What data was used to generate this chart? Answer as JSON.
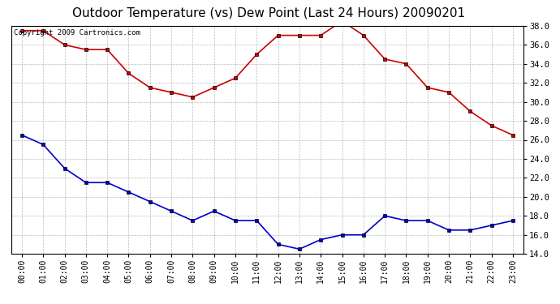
{
  "title": "Outdoor Temperature (vs) Dew Point (Last 24 Hours) 20090201",
  "copyright": "Copyright 2009 Cartronics.com",
  "hours": [
    "00:00",
    "01:00",
    "02:00",
    "03:00",
    "04:00",
    "05:00",
    "06:00",
    "07:00",
    "08:00",
    "09:00",
    "10:00",
    "11:00",
    "12:00",
    "13:00",
    "14:00",
    "15:00",
    "16:00",
    "17:00",
    "18:00",
    "19:00",
    "20:00",
    "21:00",
    "22:00",
    "23:00"
  ],
  "temp": [
    37.5,
    37.5,
    36.0,
    35.5,
    35.5,
    33.0,
    31.5,
    31.0,
    30.5,
    31.5,
    32.5,
    35.0,
    37.0,
    37.0,
    37.0,
    38.5,
    37.0,
    34.5,
    34.0,
    31.5,
    31.0,
    29.0,
    27.5,
    26.5
  ],
  "dew": [
    26.5,
    25.5,
    23.0,
    21.5,
    21.5,
    20.5,
    19.5,
    18.5,
    17.5,
    18.5,
    17.5,
    17.5,
    15.0,
    14.5,
    15.5,
    16.0,
    16.0,
    18.0,
    17.5,
    17.5,
    16.5,
    16.5,
    17.0,
    17.5
  ],
  "temp_color": "#cc0000",
  "dew_color": "#0000cc",
  "ylim": [
    14.0,
    38.0
  ],
  "yticks": [
    14.0,
    16.0,
    18.0,
    20.0,
    22.0,
    24.0,
    26.0,
    28.0,
    30.0,
    32.0,
    34.0,
    36.0,
    38.0
  ],
  "bg_color": "#ffffff",
  "grid_color": "#bbbbbb",
  "title_fontsize": 11,
  "copyright_fontsize": 6.5,
  "tick_fontsize": 7.5,
  "xtick_fontsize": 7
}
